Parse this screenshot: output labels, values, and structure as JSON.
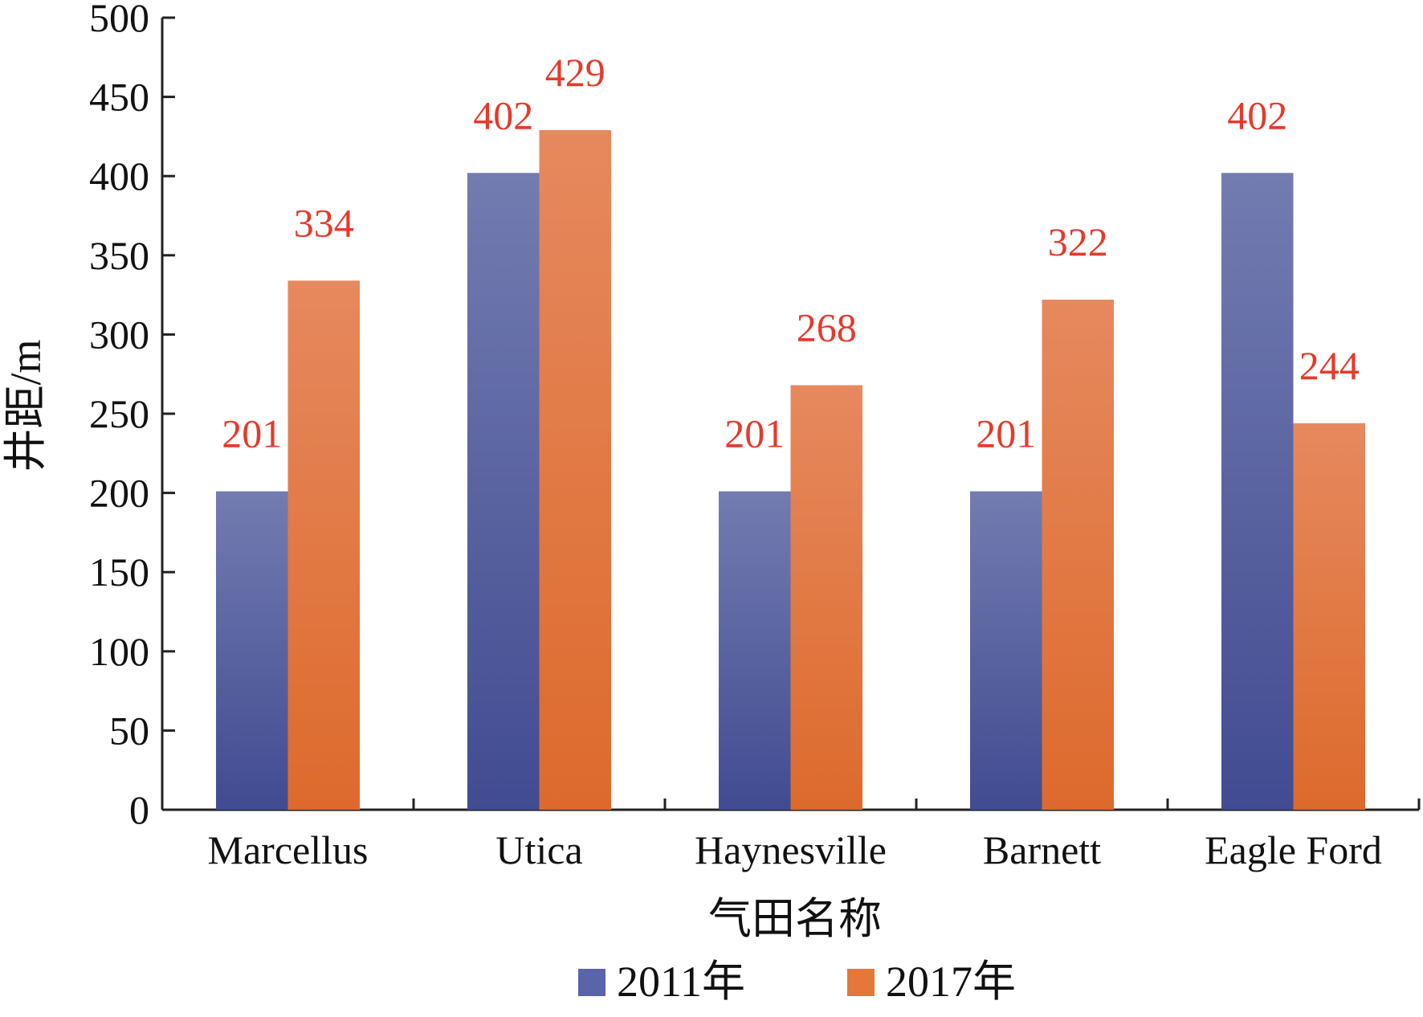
{
  "chart_data": {
    "type": "bar",
    "xlabel": "气田名称",
    "ylabel": "井距/m",
    "ylim": [
      0,
      500
    ],
    "yticks": [
      0,
      50,
      100,
      150,
      200,
      250,
      300,
      350,
      400,
      450,
      500
    ],
    "categories": [
      "Marcellus",
      "Utica",
      "Haynesville",
      "Barnett",
      "Eagle Ford"
    ],
    "series": [
      {
        "name": "2011年",
        "values": [
          201,
          402,
          201,
          201,
          402
        ],
        "color": "#5a64a8"
      },
      {
        "name": "2017年",
        "values": [
          334,
          429,
          268,
          322,
          244
        ],
        "color": "#e5773a"
      }
    ],
    "data_labels": true,
    "data_label_color": "#e53a2b",
    "grid": false,
    "legend_position": "bottom-center"
  }
}
